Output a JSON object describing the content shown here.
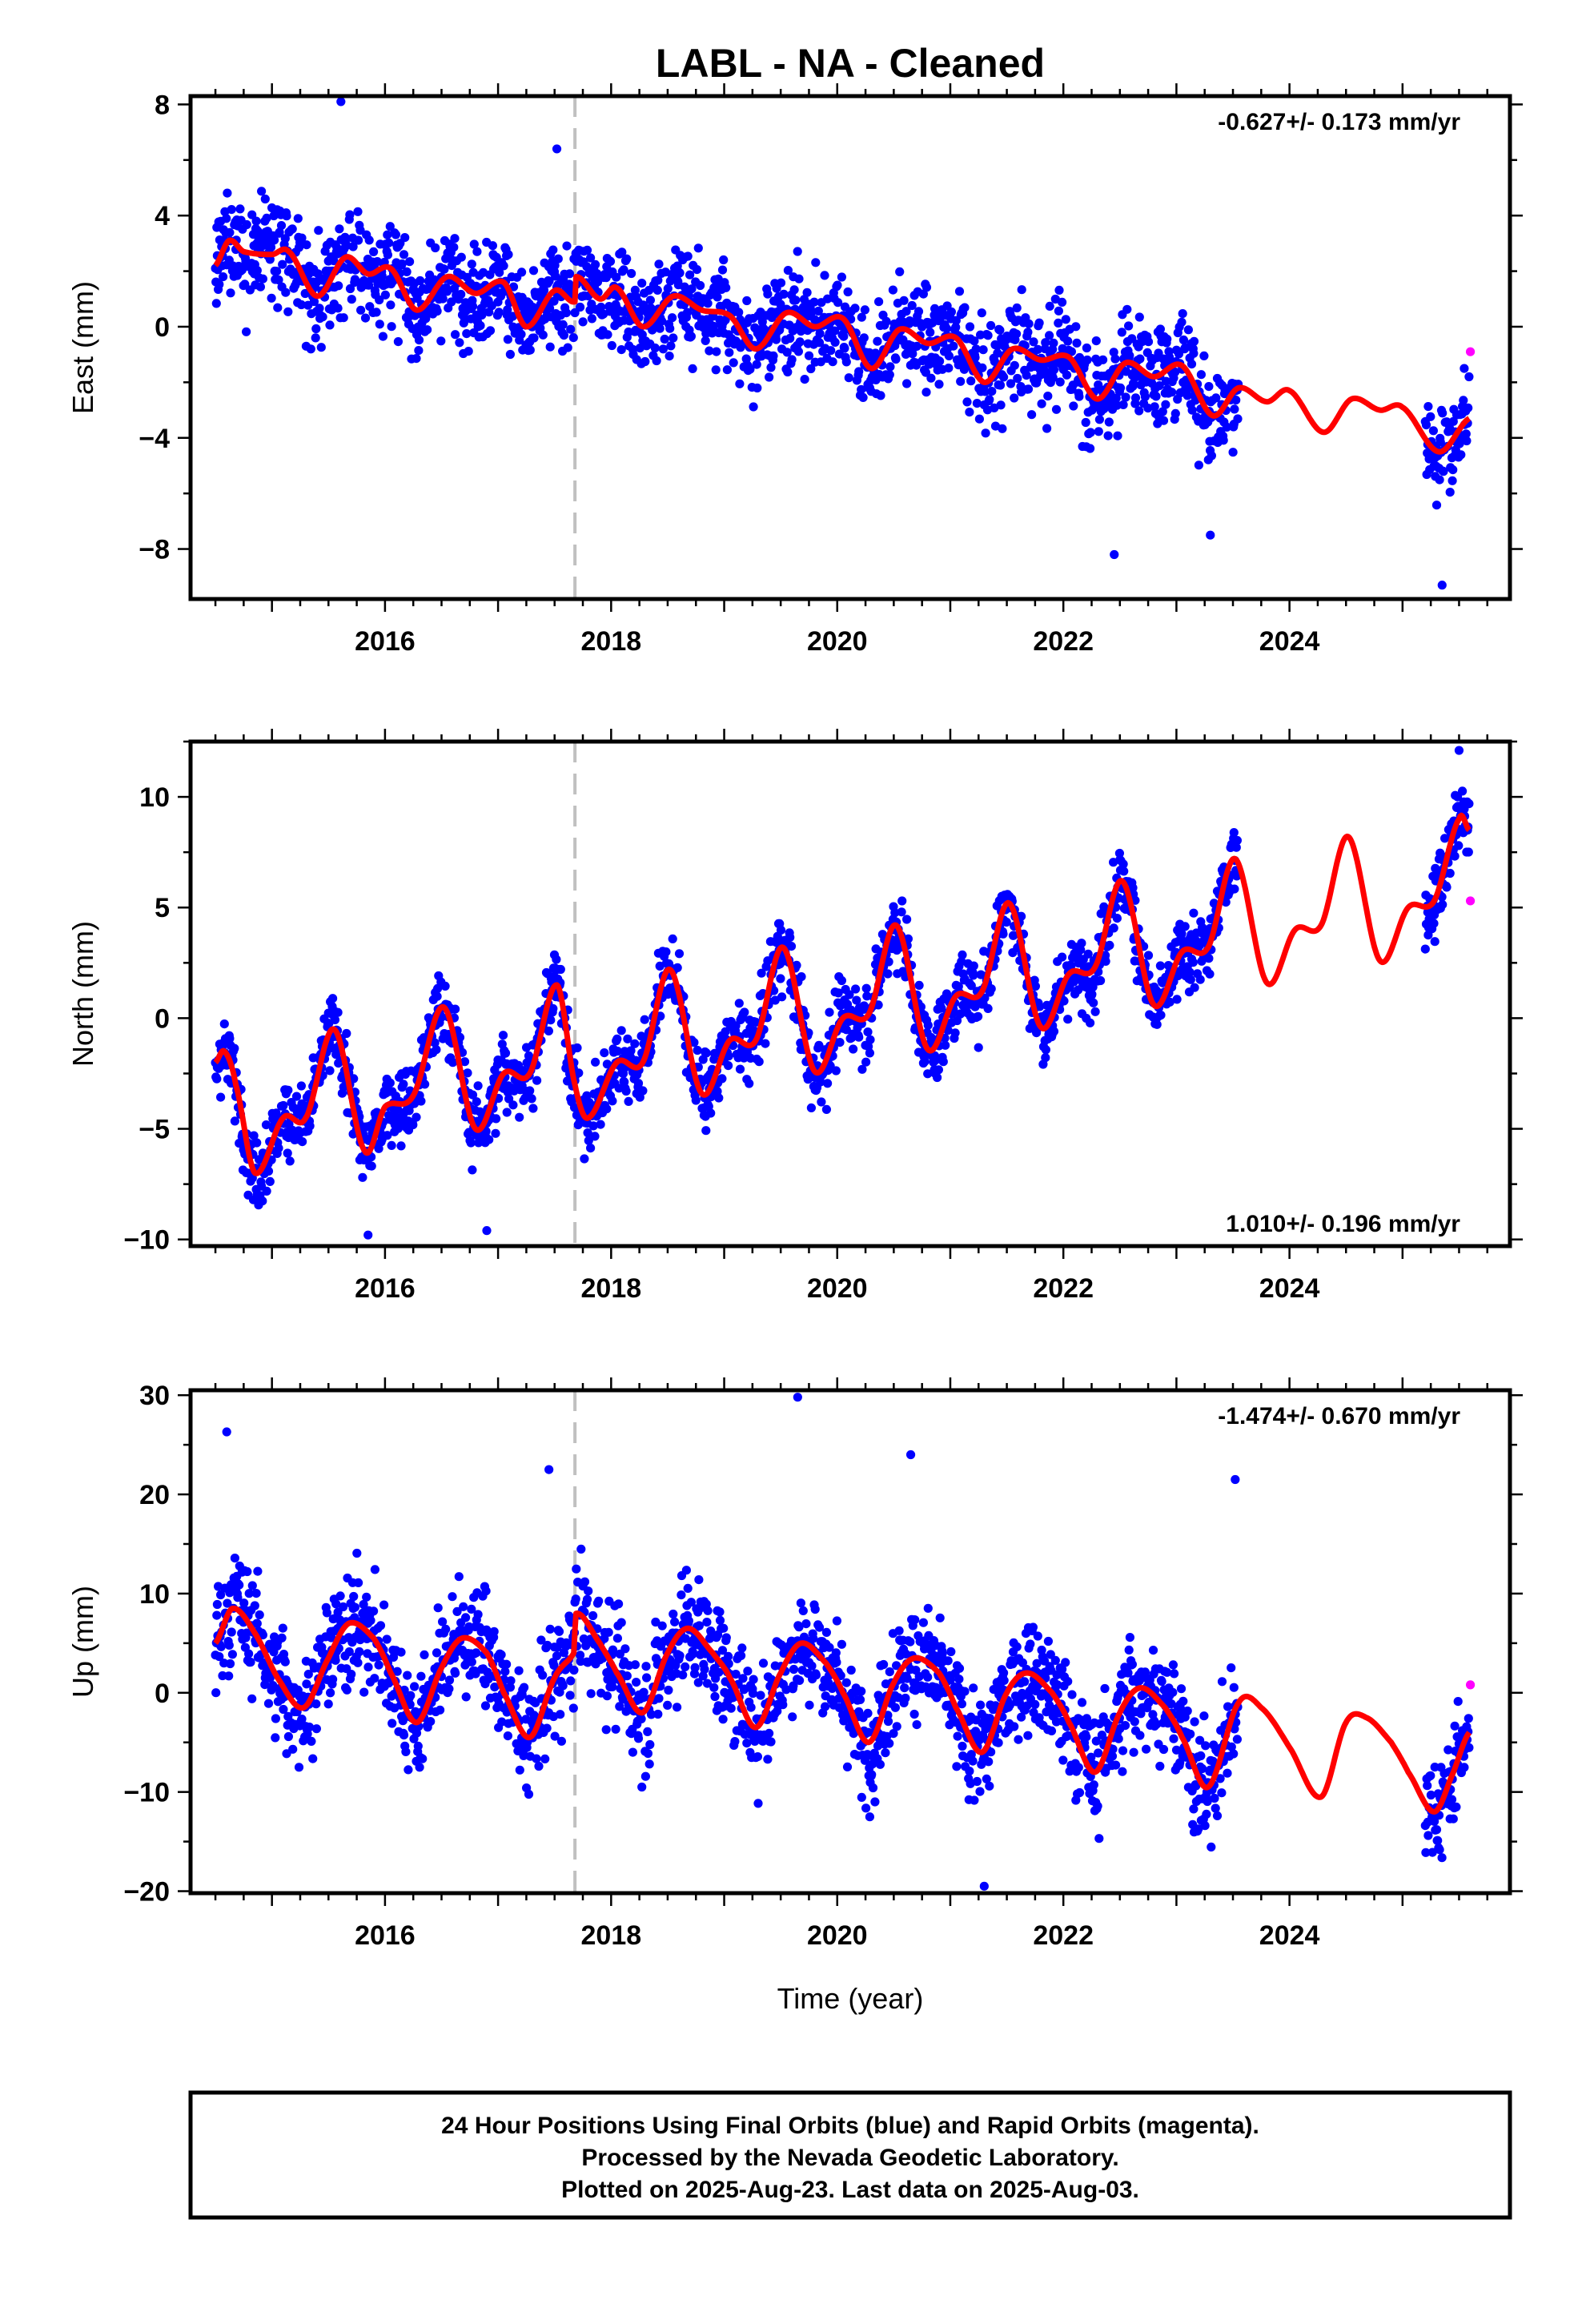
{
  "title": "LABL  - NA - Cleaned",
  "xlabel": "Time (year)",
  "footer": {
    "line1": "24 Hour Positions Using Final Orbits (blue) and Rapid Orbits (magenta).",
    "line2": "Processed by the Nevada Geodetic Laboratory.",
    "line3": "Plotted on 2025-Aug-23. Last data on 2025-Aug-03."
  },
  "colors": {
    "final_orbits": "#0000ff",
    "rapid_orbits": "#ff00ff",
    "model": "#ff0000",
    "event_marker": "#c0c0c0"
  },
  "chart_data": [
    {
      "type": "scatter",
      "component": "east",
      "ylabel": "East (mm)",
      "xlim": [
        2014.28,
        2025.95
      ],
      "ylim": [
        -9.8,
        8.3
      ],
      "xticks": [
        2016,
        2018,
        2020,
        2022,
        2024
      ],
      "yticks": [
        -8,
        -4,
        0,
        4,
        8
      ],
      "rate_label": "-0.627+/- 0.173 mm/yr",
      "rate_position": "top-right",
      "event_line_x": 2017.68,
      "data_span": [
        2014.5,
        2025.59
      ],
      "gap": [
        2023.55,
        2025.2
      ],
      "model_anchors": [
        [
          2014.5,
          2.2
        ],
        [
          2014.62,
          3.1
        ],
        [
          2014.75,
          2.7
        ],
        [
          2015.0,
          2.6
        ],
        [
          2015.15,
          2.7
        ],
        [
          2015.4,
          1.1
        ],
        [
          2015.65,
          2.5
        ],
        [
          2015.85,
          1.9
        ],
        [
          2016.05,
          2.1
        ],
        [
          2016.28,
          0.6
        ],
        [
          2016.55,
          1.8
        ],
        [
          2016.8,
          1.2
        ],
        [
          2017.05,
          1.6
        ],
        [
          2017.25,
          0.0
        ],
        [
          2017.5,
          1.3
        ],
        [
          2017.68,
          0.9
        ],
        [
          2017.69,
          1.8
        ],
        [
          2017.9,
          1.0
        ],
        [
          2018.05,
          1.4
        ],
        [
          2018.28,
          0.0
        ],
        [
          2018.55,
          1.1
        ],
        [
          2018.8,
          0.6
        ],
        [
          2019.05,
          0.4
        ],
        [
          2019.28,
          -0.8
        ],
        [
          2019.55,
          0.5
        ],
        [
          2019.8,
          0.0
        ],
        [
          2020.05,
          0.3
        ],
        [
          2020.3,
          -1.5
        ],
        [
          2020.55,
          -0.1
        ],
        [
          2020.8,
          -0.6
        ],
        [
          2021.05,
          -0.4
        ],
        [
          2021.3,
          -2.0
        ],
        [
          2021.55,
          -0.8
        ],
        [
          2021.8,
          -1.2
        ],
        [
          2022.05,
          -1.1
        ],
        [
          2022.3,
          -2.6
        ],
        [
          2022.55,
          -1.3
        ],
        [
          2022.8,
          -1.8
        ],
        [
          2023.05,
          -1.4
        ],
        [
          2023.32,
          -3.2
        ],
        [
          2023.55,
          -2.2
        ],
        [
          2023.8,
          -2.7
        ],
        [
          2024.0,
          -2.3
        ],
        [
          2024.3,
          -3.8
        ],
        [
          2024.55,
          -2.6
        ],
        [
          2024.8,
          -3.0
        ],
        [
          2025.0,
          -2.9
        ],
        [
          2025.32,
          -4.5
        ],
        [
          2025.59,
          -3.3
        ]
      ],
      "scatter_sd": 1.3,
      "outliers": [
        [
          2015.61,
          8.1
        ],
        [
          2017.52,
          6.4
        ],
        [
          2022.45,
          -8.2
        ],
        [
          2025.35,
          -9.3
        ],
        [
          2023.3,
          -7.5
        ]
      ],
      "rapid_points": [
        [
          2025.6,
          -0.9
        ]
      ]
    },
    {
      "type": "scatter",
      "component": "north",
      "ylabel": "North (mm)",
      "xlim": [
        2014.28,
        2025.95
      ],
      "ylim": [
        -10.3,
        12.5
      ],
      "xticks": [
        2016,
        2018,
        2020,
        2022,
        2024
      ],
      "yticks": [
        -10,
        -5,
        0,
        5,
        10
      ],
      "rate_label": "1.010+/- 0.196 mm/yr",
      "rate_position": "bottom-right",
      "event_line_x": 2017.68,
      "data_span": [
        2014.5,
        2025.59
      ],
      "gap": [
        2023.55,
        2025.2
      ],
      "model_anchors": [
        [
          2014.5,
          -2.0
        ],
        [
          2014.58,
          -1.5
        ],
        [
          2014.68,
          -3.0
        ],
        [
          2014.85,
          -7.0
        ],
        [
          2015.1,
          -4.5
        ],
        [
          2015.3,
          -4.5
        ],
        [
          2015.55,
          -0.5
        ],
        [
          2015.82,
          -6.0
        ],
        [
          2016.0,
          -4.0
        ],
        [
          2016.25,
          -3.5
        ],
        [
          2016.52,
          0.5
        ],
        [
          2016.8,
          -5.0
        ],
        [
          2017.05,
          -2.5
        ],
        [
          2017.28,
          -2.5
        ],
        [
          2017.52,
          1.5
        ],
        [
          2017.68,
          -3.0
        ],
        [
          2017.8,
          -4.5
        ],
        [
          2018.05,
          -2.0
        ],
        [
          2018.28,
          -2.0
        ],
        [
          2018.52,
          2.2
        ],
        [
          2018.8,
          -3.4
        ],
        [
          2019.05,
          -1.0
        ],
        [
          2019.28,
          -1.0
        ],
        [
          2019.52,
          3.2
        ],
        [
          2019.8,
          -2.4
        ],
        [
          2020.05,
          0.0
        ],
        [
          2020.28,
          0.2
        ],
        [
          2020.52,
          4.2
        ],
        [
          2020.8,
          -1.4
        ],
        [
          2021.05,
          1.0
        ],
        [
          2021.28,
          1.2
        ],
        [
          2021.52,
          5.2
        ],
        [
          2021.8,
          -0.4
        ],
        [
          2022.05,
          2.0
        ],
        [
          2022.28,
          2.3
        ],
        [
          2022.52,
          6.2
        ],
        [
          2022.8,
          0.6
        ],
        [
          2023.05,
          3.0
        ],
        [
          2023.28,
          3.2
        ],
        [
          2023.52,
          7.2
        ],
        [
          2023.8,
          1.6
        ],
        [
          2024.05,
          4.0
        ],
        [
          2024.28,
          4.2
        ],
        [
          2024.52,
          8.2
        ],
        [
          2024.8,
          2.6
        ],
        [
          2025.05,
          5.0
        ],
        [
          2025.28,
          5.3
        ],
        [
          2025.5,
          9.0
        ],
        [
          2025.59,
          8.5
        ]
      ],
      "scatter_sd": 1.2,
      "outliers": [
        [
          2015.85,
          -9.8
        ],
        [
          2016.9,
          -9.6
        ],
        [
          2025.5,
          12.1
        ]
      ],
      "rapid_points": [
        [
          2025.6,
          5.3
        ]
      ]
    },
    {
      "type": "scatter",
      "component": "up",
      "ylabel": "Up (mm)",
      "xlim": [
        2014.28,
        2025.95
      ],
      "ylim": [
        -20.2,
        30.5
      ],
      "xticks": [
        2016,
        2018,
        2020,
        2022,
        2024
      ],
      "yticks": [
        -20,
        -10,
        0,
        10,
        20,
        30
      ],
      "rate_label": "-1.474+/- 0.670 mm/yr",
      "rate_position": "top-right",
      "event_line_x": 2017.68,
      "data_span": [
        2014.5,
        2025.59
      ],
      "gap": [
        2023.55,
        2025.2
      ],
      "model_anchors": [
        [
          2014.5,
          5.0
        ],
        [
          2014.65,
          8.5
        ],
        [
          2014.85,
          6.0
        ],
        [
          2015.05,
          1.5
        ],
        [
          2015.28,
          -1.5
        ],
        [
          2015.5,
          3.5
        ],
        [
          2015.68,
          7.0
        ],
        [
          2015.9,
          5.5
        ],
        [
          2016.05,
          2.0
        ],
        [
          2016.28,
          -3.0
        ],
        [
          2016.5,
          2.5
        ],
        [
          2016.68,
          5.5
        ],
        [
          2016.9,
          4.0
        ],
        [
          2017.05,
          0.0
        ],
        [
          2017.28,
          -4.5
        ],
        [
          2017.5,
          1.5
        ],
        [
          2017.67,
          4.0
        ],
        [
          2017.69,
          8.0
        ],
        [
          2017.9,
          5.0
        ],
        [
          2018.05,
          2.0
        ],
        [
          2018.28,
          -2.0
        ],
        [
          2018.5,
          4.0
        ],
        [
          2018.68,
          6.5
        ],
        [
          2018.9,
          4.0
        ],
        [
          2019.05,
          1.5
        ],
        [
          2019.28,
          -3.5
        ],
        [
          2019.5,
          2.0
        ],
        [
          2019.68,
          5.0
        ],
        [
          2019.9,
          3.0
        ],
        [
          2020.05,
          0.0
        ],
        [
          2020.28,
          -5.0
        ],
        [
          2020.5,
          1.0
        ],
        [
          2020.68,
          3.5
        ],
        [
          2020.9,
          2.0
        ],
        [
          2021.05,
          -1.5
        ],
        [
          2021.28,
          -6.0
        ],
        [
          2021.5,
          0.0
        ],
        [
          2021.68,
          2.0
        ],
        [
          2021.9,
          0.0
        ],
        [
          2022.05,
          -3.0
        ],
        [
          2022.28,
          -8.0
        ],
        [
          2022.5,
          -2.0
        ],
        [
          2022.68,
          0.5
        ],
        [
          2022.9,
          -1.5
        ],
        [
          2023.05,
          -4.5
        ],
        [
          2023.28,
          -9.5
        ],
        [
          2023.55,
          -1.0
        ],
        [
          2023.75,
          -1.5
        ],
        [
          2024.0,
          -5.5
        ],
        [
          2024.28,
          -10.5
        ],
        [
          2024.5,
          -3.0
        ],
        [
          2024.68,
          -2.5
        ],
        [
          2024.9,
          -5.0
        ],
        [
          2025.05,
          -8.0
        ],
        [
          2025.28,
          -12.0
        ],
        [
          2025.45,
          -8.0
        ],
        [
          2025.59,
          -4.0
        ]
      ],
      "scatter_sd": 4.0,
      "outliers": [
        [
          2019.65,
          29.8
        ],
        [
          2014.6,
          26.3
        ],
        [
          2017.45,
          22.5
        ],
        [
          2020.65,
          24.0
        ],
        [
          2023.52,
          21.5
        ],
        [
          2021.3,
          -19.5
        ]
      ],
      "rapid_points": [
        [
          2025.6,
          0.8
        ]
      ]
    }
  ]
}
